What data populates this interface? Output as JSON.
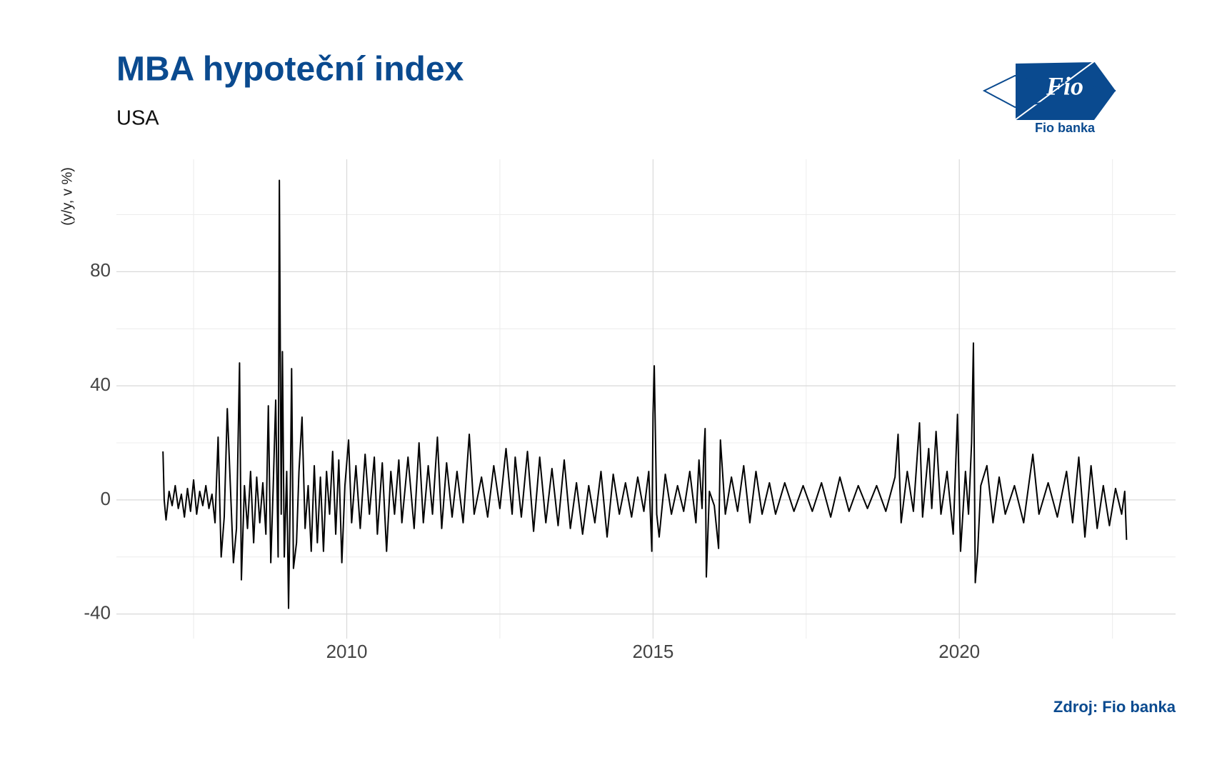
{
  "chart_data": {
    "type": "line",
    "title": "MBA hypoteční index",
    "subtitle": "USA",
    "y_label": "(y/y, v %)",
    "source": "Zdroj: Fio banka",
    "xlim": [
      2006.24,
      2023.53
    ],
    "xticks": [
      2010,
      2015,
      2020
    ],
    "minor_xticks": [
      2007.5,
      2012.5,
      2017.5,
      2022.5
    ],
    "ylim": [
      -48.6,
      119.4
    ],
    "yticks": [
      -40,
      0,
      40,
      80
    ],
    "minor_yticks": [
      -20,
      20,
      60,
      100
    ],
    "grid": true,
    "series": [
      {
        "color": "#000000",
        "x": [
          2007.0,
          2007.02,
          2007.05,
          2007.1,
          2007.15,
          2007.2,
          2007.25,
          2007.3,
          2007.35,
          2007.4,
          2007.45,
          2007.5,
          2007.55,
          2007.6,
          2007.65,
          2007.7,
          2007.75,
          2007.8,
          2007.85,
          2007.9,
          2007.95,
          2008.0,
          2008.05,
          2008.1,
          2008.15,
          2008.2,
          2008.25,
          2008.28,
          2008.33,
          2008.38,
          2008.43,
          2008.48,
          2008.53,
          2008.58,
          2008.63,
          2008.68,
          2008.72,
          2008.76,
          2008.8,
          2008.84,
          2008.88,
          2008.9,
          2008.93,
          2008.95,
          2008.98,
          2009.02,
          2009.05,
          2009.08,
          2009.1,
          2009.13,
          2009.18,
          2009.22,
          2009.27,
          2009.32,
          2009.37,
          2009.42,
          2009.47,
          2009.52,
          2009.57,
          2009.62,
          2009.67,
          2009.72,
          2009.77,
          2009.82,
          2009.87,
          2009.92,
          2009.97,
          2010.03,
          2010.08,
          2010.15,
          2010.22,
          2010.3,
          2010.37,
          2010.45,
          2010.5,
          2010.58,
          2010.65,
          2010.72,
          2010.78,
          2010.85,
          2010.9,
          2011.0,
          2011.1,
          2011.18,
          2011.25,
          2011.33,
          2011.4,
          2011.48,
          2011.55,
          2011.63,
          2011.72,
          2011.8,
          2011.9,
          2012.0,
          2012.08,
          2012.2,
          2012.3,
          2012.4,
          2012.5,
          2012.6,
          2012.7,
          2012.75,
          2012.85,
          2012.95,
          2013.05,
          2013.15,
          2013.25,
          2013.35,
          2013.45,
          2013.55,
          2013.65,
          2013.75,
          2013.85,
          2013.95,
          2014.05,
          2014.15,
          2014.25,
          2014.35,
          2014.45,
          2014.55,
          2014.65,
          2014.75,
          2014.85,
          2014.93,
          2014.98,
          2015.0,
          2015.02,
          2015.06,
          2015.1,
          2015.2,
          2015.3,
          2015.4,
          2015.5,
          2015.6,
          2015.7,
          2015.75,
          2015.8,
          2015.83,
          2015.85,
          2015.87,
          2015.92,
          2016.0,
          2016.07,
          2016.1,
          2016.18,
          2016.28,
          2016.38,
          2016.48,
          2016.58,
          2016.68,
          2016.78,
          2016.9,
          2017.0,
          2017.15,
          2017.3,
          2017.45,
          2017.6,
          2017.75,
          2017.9,
          2018.05,
          2018.2,
          2018.35,
          2018.5,
          2018.65,
          2018.8,
          2018.95,
          2019.0,
          2019.05,
          2019.15,
          2019.25,
          2019.35,
          2019.4,
          2019.5,
          2019.55,
          2019.62,
          2019.7,
          2019.8,
          2019.9,
          2019.97,
          2020.02,
          2020.1,
          2020.15,
          2020.2,
          2020.23,
          2020.26,
          2020.3,
          2020.35,
          2020.45,
          2020.55,
          2020.65,
          2020.75,
          2020.9,
          2021.05,
          2021.2,
          2021.3,
          2021.45,
          2021.6,
          2021.75,
          2021.85,
          2021.95,
          2022.05,
          2022.15,
          2022.25,
          2022.35,
          2022.45,
          2022.55,
          2022.65,
          2022.7,
          2022.73
        ],
        "values": [
          17,
          0,
          -7,
          3,
          -2,
          5,
          -3,
          2,
          -6,
          4,
          -4,
          7,
          -5,
          3,
          -2,
          5,
          -3,
          2,
          -8,
          22,
          -20,
          -6,
          32,
          5,
          -22,
          -10,
          48,
          -28,
          5,
          -10,
          10,
          -15,
          8,
          -8,
          6,
          -12,
          33,
          -22,
          5,
          35,
          -20,
          112,
          -5,
          52,
          -20,
          10,
          -38,
          5,
          46,
          -24,
          -15,
          10,
          29,
          -10,
          5,
          -18,
          12,
          -15,
          8,
          -18,
          10,
          -5,
          17,
          -12,
          14,
          -22,
          5,
          21,
          -8,
          12,
          -10,
          16,
          -5,
          15,
          -12,
          13,
          -18,
          10,
          -5,
          14,
          -8,
          15,
          -10,
          20,
          -8,
          12,
          -5,
          22,
          -10,
          13,
          -6,
          10,
          -8,
          23,
          -5,
          8,
          -6,
          12,
          -3,
          18,
          -5,
          15,
          -6,
          17,
          -11,
          15,
          -8,
          11,
          -9,
          14,
          -10,
          6,
          -12,
          5,
          -8,
          10,
          -13,
          9,
          -5,
          6,
          -6,
          8,
          -4,
          10,
          -18,
          30,
          47,
          -5,
          -13,
          9,
          -5,
          5,
          -4,
          10,
          -8,
          14,
          -3,
          17,
          25,
          -27,
          3,
          -2,
          -17,
          21,
          -5,
          8,
          -4,
          12,
          -8,
          10,
          -5,
          6,
          -5,
          6,
          -4,
          5,
          -4,
          6,
          -6,
          8,
          -4,
          5,
          -3,
          5,
          -4,
          8,
          23,
          -8,
          10,
          -4,
          27,
          -6,
          18,
          -3,
          24,
          -5,
          10,
          -12,
          30,
          -18,
          10,
          -5,
          20,
          55,
          -29,
          -18,
          5,
          12,
          -8,
          8,
          -5,
          5,
          -8,
          16,
          -5,
          6,
          -6,
          10,
          -8,
          15,
          -13,
          12,
          -10,
          5,
          -9,
          4,
          -5,
          3,
          -14
        ]
      }
    ]
  },
  "logo": {
    "mark": "Fio",
    "name": "Fio banka"
  }
}
